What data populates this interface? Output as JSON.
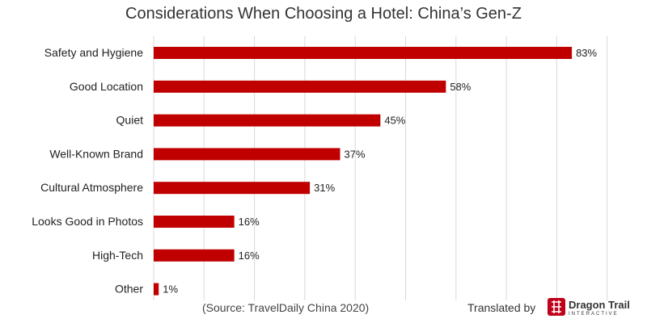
{
  "chart_data": {
    "type": "bar",
    "orientation": "horizontal",
    "title": "Considerations When Choosing a Hotel: China’s Gen-Z",
    "categories": [
      "Safety and Hygiene",
      "Good Location",
      "Quiet",
      "Well-Known Brand",
      "Cultural Atmosphere",
      "Looks Good in Photos",
      "High-Tech",
      "Other"
    ],
    "values": [
      83,
      58,
      45,
      37,
      31,
      16,
      16,
      1
    ],
    "value_labels": [
      "83%",
      "58%",
      "45%",
      "37%",
      "31%",
      "16%",
      "16%",
      "1%"
    ],
    "xlim": [
      0,
      100
    ],
    "bar_color": "#c00000",
    "grid": true,
    "legend": "none"
  },
  "footer": {
    "source": "(Source: TravelDaily China 2020)",
    "translated_by": "Translated by",
    "brand_name": "Dragon Trail",
    "brand_sub": "INTERACTIVE"
  },
  "colors": {
    "logo": "#c1001a"
  }
}
